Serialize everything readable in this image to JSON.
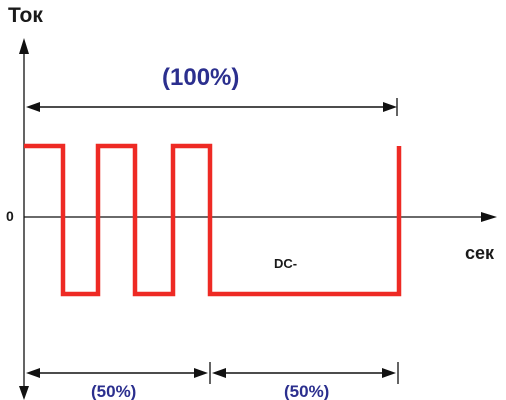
{
  "labels": {
    "y_axis": "Ток",
    "x_axis": "сек",
    "zero": "0",
    "total": "(100%)",
    "dc_segment": "DC-",
    "first_half": "(50%)",
    "second_half": "(50%)"
  },
  "colors": {
    "waveform": "#ee2a24",
    "percent_text": "#2b2f8e",
    "axis": "#111111"
  }
}
